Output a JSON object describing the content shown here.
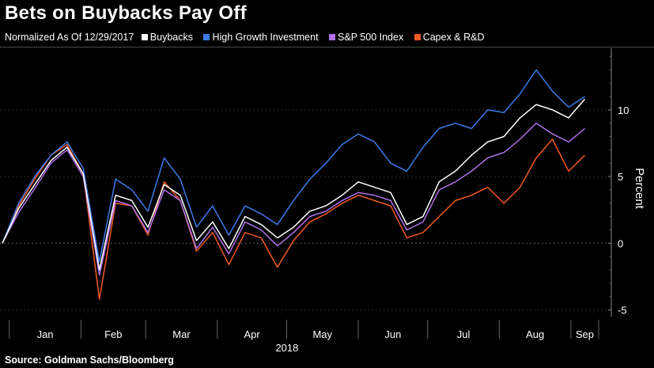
{
  "title": "Bets on Buybacks Pay Off",
  "legend_note": "Normalized As Of 12/29/2017",
  "source": "Source: Goldman Sachs/Bloomberg",
  "chart_data": {
    "type": "line",
    "ylabel": "Percent",
    "ylim": [
      -5.5,
      14.5
    ],
    "yticks": [
      -5,
      0,
      5,
      10
    ],
    "x_ticks": [
      "Jan",
      "Feb",
      "Mar",
      "Apr",
      "May",
      "Jun",
      "Jul",
      "Aug",
      "Sep"
    ],
    "x_tick_year": "2018",
    "x": [
      "2017-12-29",
      "2018-01-05",
      "2018-01-12",
      "2018-01-19",
      "2018-01-26",
      "2018-02-02",
      "2018-02-09",
      "2018-02-16",
      "2018-02-23",
      "2018-03-02",
      "2018-03-09",
      "2018-03-16",
      "2018-03-23",
      "2018-03-30",
      "2018-04-06",
      "2018-04-13",
      "2018-04-20",
      "2018-04-27",
      "2018-05-04",
      "2018-05-11",
      "2018-05-18",
      "2018-05-25",
      "2018-06-01",
      "2018-06-08",
      "2018-06-15",
      "2018-06-22",
      "2018-06-29",
      "2018-07-06",
      "2018-07-13",
      "2018-07-20",
      "2018-07-27",
      "2018-08-03",
      "2018-08-10",
      "2018-08-17",
      "2018-08-24",
      "2018-08-31",
      "2018-09-07"
    ],
    "series": [
      {
        "name": "Buybacks",
        "color": "#ffffff",
        "values": [
          0,
          2.6,
          4.4,
          6.2,
          7.2,
          5.2,
          -2.0,
          3.6,
          3.2,
          1.2,
          4.4,
          3.6,
          0.2,
          1.6,
          -0.4,
          2.0,
          1.4,
          0.4,
          1.2,
          2.4,
          2.8,
          3.6,
          4.6,
          4.2,
          3.8,
          1.4,
          2.0,
          4.6,
          5.4,
          6.6,
          7.6,
          8.0,
          9.4,
          10.4,
          10.0,
          9.4,
          10.8
        ]
      },
      {
        "name": "High Growth Investment",
        "color": "#3d7ae8",
        "values": [
          0,
          3.0,
          5.0,
          6.6,
          7.6,
          5.6,
          -1.4,
          4.8,
          4.0,
          2.4,
          6.4,
          4.8,
          1.2,
          2.8,
          0.6,
          2.8,
          2.2,
          1.4,
          3.2,
          4.8,
          6.0,
          7.4,
          8.2,
          7.6,
          6.0,
          5.4,
          7.2,
          8.6,
          9.0,
          8.6,
          10.0,
          9.8,
          11.2,
          13.0,
          11.4,
          10.2,
          11.0
        ]
      },
      {
        "name": "S&P 500 Index",
        "color": "#b070e8",
        "values": [
          0,
          2.3,
          4.1,
          6.0,
          7.0,
          5.0,
          -2.4,
          3.2,
          2.8,
          0.8,
          4.0,
          3.2,
          -0.4,
          1.2,
          -0.8,
          1.6,
          1.0,
          -0.2,
          0.8,
          2.0,
          2.4,
          3.2,
          3.8,
          3.6,
          3.2,
          1.0,
          1.6,
          4.0,
          4.6,
          5.4,
          6.4,
          6.8,
          7.8,
          9.0,
          8.2,
          7.6,
          8.6
        ]
      },
      {
        "name": "Capex & R&D",
        "color": "#f05a22",
        "values": [
          0,
          2.8,
          4.8,
          6.6,
          7.4,
          5.2,
          -4.2,
          3.0,
          2.8,
          0.6,
          4.6,
          3.2,
          -0.6,
          0.8,
          -1.6,
          0.8,
          0.4,
          -1.8,
          0.2,
          1.6,
          2.2,
          3.0,
          3.6,
          3.2,
          2.8,
          0.4,
          0.8,
          2.0,
          3.2,
          3.6,
          4.2,
          3.0,
          4.2,
          6.4,
          7.8,
          5.4,
          6.6
        ]
      }
    ]
  }
}
